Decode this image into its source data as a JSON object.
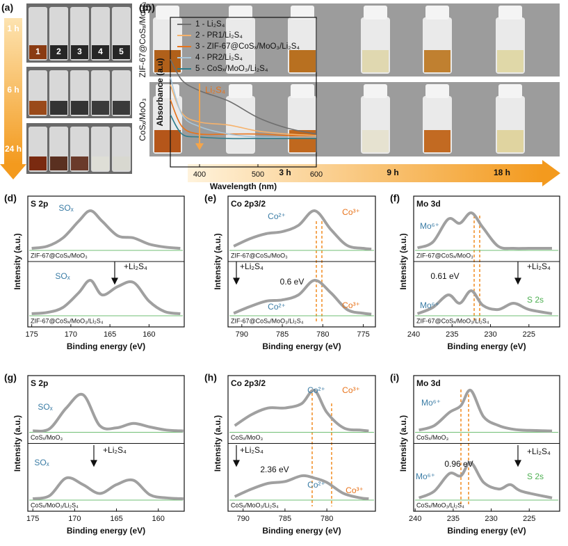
{
  "panel_a": {
    "label": "(a)",
    "times": [
      "1 h",
      "6 h",
      "24 h"
    ],
    "vials": [
      "1",
      "2",
      "3",
      "4",
      "5"
    ]
  },
  "panel_c": {
    "label": "(c)",
    "samples": [
      "ZIF-67@CoSₓ/MoO₃",
      "CoSₓ/MoO₃"
    ],
    "times": [
      "3 h",
      "9 h",
      "18 h"
    ]
  },
  "chart_data": [
    {
      "type": "line",
      "label": "(b)",
      "xlabel": "Wavelength (nm)",
      "ylabel": "Absorbance (a.u)",
      "annotation": "Li₂S₄",
      "xlim": [
        350,
        600
      ],
      "xticks": [
        400,
        500,
        600
      ],
      "ylim": [
        0,
        1
      ],
      "yticks": [],
      "x": [
        350,
        370,
        400,
        450,
        500,
        550,
        600
      ],
      "series": [
        {
          "name": "1 - Li₂S₄",
          "color": "#6e6e6e",
          "values": [
            0.72,
            0.58,
            0.51,
            0.44,
            0.33,
            0.26,
            0.22
          ]
        },
        {
          "name": "2 - PR1/Li₂S₄",
          "color": "#f6b26b",
          "values": [
            0.55,
            0.36,
            0.3,
            0.28,
            0.24,
            0.22,
            0.21
          ]
        },
        {
          "name": "3 - ZIF-67@CoSₓ/MoO₃/Li₂S₄",
          "color": "#e8731a",
          "values": [
            0.45,
            0.27,
            0.22,
            0.22,
            0.22,
            0.21,
            0.2
          ]
        },
        {
          "name": "4 - PR2/Li₂S₄",
          "color": "#a9c6d9",
          "values": [
            0.6,
            0.35,
            0.27,
            0.22,
            0.2,
            0.2,
            0.2
          ]
        },
        {
          "name": "5 - CoSₓ/MoO₃/Li₂S₄",
          "color": "#2e7d8c",
          "values": [
            0.35,
            0.22,
            0.2,
            0.19,
            0.19,
            0.19,
            0.19
          ]
        }
      ]
    },
    {
      "type": "xps",
      "label": "(d)",
      "title": "S 2p",
      "xlabel": "Binding energy (eV)",
      "ylabel": "Intensity (a.u.)",
      "xlim": [
        175.5,
        155.5
      ],
      "xticks": [
        175,
        170,
        165,
        160
      ],
      "ylim": [
        0,
        1
      ],
      "yticks": [],
      "x": [
        175,
        173,
        171,
        169,
        167.5,
        166,
        164,
        162,
        160,
        158,
        156
      ],
      "series": [
        {
          "color": "#a0a0a0",
          "values": [
            0.05,
            0.1,
            0.3,
            0.7,
            0.95,
            0.7,
            0.35,
            0.3,
            0.15,
            0.08,
            0.05
          ]
        },
        {
          "color": "#a0a0a0",
          "values": [
            0.05,
            0.08,
            0.2,
            0.55,
            0.85,
            0.5,
            0.7,
            0.8,
            0.35,
            0.1,
            0.05
          ]
        }
      ],
      "sample_labels": [
        "ZIF-67@CoSₓ/MoO₃",
        "ZIF-67@CoSₓ/MoO₃/Li₂S₄"
      ],
      "annotations": [
        "SOₓ",
        "SOₓ",
        "+Li₂S₄"
      ]
    },
    {
      "type": "xps",
      "label": "(e)",
      "title": "Co 2p3/2",
      "xlabel": "Binding energy (eV)",
      "ylabel": "Intensity (a.u.)",
      "xlim": [
        791.7,
        773.5
      ],
      "xticks": [
        790,
        785,
        780,
        775
      ],
      "ylim": [
        0,
        1
      ],
      "yticks": [],
      "x": [
        791,
        789,
        787,
        785,
        783,
        781,
        779,
        777,
        775,
        774
      ],
      "series": [
        {
          "color": "#a0a0a0",
          "values": [
            0.1,
            0.28,
            0.4,
            0.45,
            0.6,
            0.95,
            0.5,
            0.12,
            0.05,
            0.03
          ]
        },
        {
          "color": "#a0a0a0",
          "values": [
            0.06,
            0.22,
            0.35,
            0.38,
            0.5,
            0.85,
            0.55,
            0.15,
            0.06,
            0.04
          ]
        }
      ],
      "sample_labels": [
        "ZIF-67@CoSₓ/MoO₃",
        "ZIF-67@CoSₓ/MoO₃/Li₂S₄"
      ],
      "annotations": [
        "Co²⁺",
        "Co³⁺",
        "+Li₂S₄",
        "0.6 eV",
        "Co²⁺",
        "Co³⁺"
      ]
    },
    {
      "type": "xps",
      "label": "(f)",
      "title": "Mo 3d",
      "xlabel": "Binding energy (eV)",
      "ylabel": "Intensity (a.u.)",
      "xlim": [
        240,
        221
      ],
      "xticks": [
        240,
        235,
        230,
        225
      ],
      "ylim": [
        0,
        1
      ],
      "yticks": [],
      "x": [
        239.5,
        237.5,
        235.5,
        234,
        232.5,
        231,
        229,
        227,
        225,
        222
      ],
      "series": [
        {
          "color": "#a0a0a0",
          "values": [
            0.06,
            0.2,
            0.75,
            0.65,
            0.9,
            0.55,
            0.1,
            0.05,
            0.05,
            0.05
          ]
        },
        {
          "color": "#a0a0a0",
          "values": [
            0.05,
            0.2,
            0.5,
            0.3,
            0.6,
            0.25,
            0.15,
            0.3,
            0.15,
            0.05
          ]
        }
      ],
      "sample_labels": [
        "ZIF-67@CoSₓ/MoO₃",
        "ZIF-67@CoSₓ/MoO₃/Li₂S₄"
      ],
      "annotations": [
        "Mo⁶⁺",
        "+Li₂S₄",
        "0.61 eV",
        "Mo⁶⁺",
        "S 2s"
      ]
    },
    {
      "type": "xps",
      "label": "(g)",
      "title": "S 2p",
      "xlabel": "Binding energy (eV)",
      "ylabel": "Intensity (a.u.)",
      "xlim": [
        175.6,
        156.9
      ],
      "xticks": [
        175,
        170,
        165,
        160
      ],
      "ylim": [
        0,
        1
      ],
      "yticks": [],
      "x": [
        175,
        173,
        171,
        169,
        167,
        165,
        163,
        161,
        159,
        157
      ],
      "series": [
        {
          "color": "#a0a0a0",
          "values": [
            0.03,
            0.08,
            0.55,
            0.85,
            0.15,
            0.1,
            0.2,
            0.12,
            0.05,
            0.03
          ]
        },
        {
          "color": "#a0a0a0",
          "values": [
            0.03,
            0.1,
            0.5,
            0.35,
            0.15,
            0.35,
            0.45,
            0.12,
            0.05,
            0.03
          ]
        }
      ],
      "sample_labels": [
        "CoSₓ/MoO₃",
        "CoSₓ/MoO₃/Li₂S₄"
      ],
      "annotations": [
        "SOₓ",
        "SOₓ",
        "+Li₂S₄"
      ]
    },
    {
      "type": "xps",
      "label": "(h)",
      "title": "Co 2p3/2",
      "xlabel": "Binding energy (eV)",
      "ylabel": "Intensity (a.u.)",
      "xlim": [
        791.8,
        774.2
      ],
      "xticks": [
        790,
        785,
        780
      ],
      "ylim": [
        0,
        1
      ],
      "yticks": [],
      "x": [
        791,
        789,
        787,
        785,
        783,
        781.5,
        780,
        778,
        776,
        775
      ],
      "series": [
        {
          "color": "#a0a0a0",
          "values": [
            0.15,
            0.4,
            0.55,
            0.55,
            0.65,
            0.95,
            0.45,
            0.1,
            0.05,
            0.03
          ]
        },
        {
          "color": "#a0a0a0",
          "values": [
            0.08,
            0.25,
            0.38,
            0.42,
            0.55,
            0.5,
            0.4,
            0.15,
            0.05,
            0.03
          ]
        }
      ],
      "sample_labels": [
        "CoSₓ/MoO₃",
        "CoSₓ/MoO₃/Li₂S₄"
      ],
      "annotations": [
        "Co²⁺",
        "Co³⁺",
        "+Li₂S₄",
        "2.36 eV",
        "Co²⁺",
        "Co³⁺"
      ]
    },
    {
      "type": "xps",
      "label": "(i)",
      "title": "Mo 3d",
      "xlabel": "Binding energy (eV)",
      "ylabel": "Intensity (a.u.)",
      "xlim": [
        240.2,
        221
      ],
      "xticks": [
        240,
        235,
        230,
        225
      ],
      "ylim": [
        0,
        1
      ],
      "yticks": [],
      "x": [
        239.5,
        237.5,
        235.5,
        234,
        232.7,
        231,
        229,
        227.5,
        226,
        222
      ],
      "series": [
        {
          "color": "#a0a0a0",
          "values": [
            0.05,
            0.15,
            0.45,
            0.6,
            0.95,
            0.35,
            0.15,
            0.08,
            0.05,
            0.03
          ]
        },
        {
          "color": "#a0a0a0",
          "values": [
            0.05,
            0.2,
            0.6,
            0.55,
            0.85,
            0.4,
            0.25,
            0.35,
            0.2,
            0.05
          ]
        }
      ],
      "sample_labels": [
        "CoSₓ/MoO₃",
        "CoSₓ/MoO₃/Li₂S₄"
      ],
      "annotations": [
        "Mo⁶⁺",
        "+Li₂S₄",
        "0.96 eV",
        "Mo⁶⁺",
        "S 2s"
      ]
    }
  ]
}
